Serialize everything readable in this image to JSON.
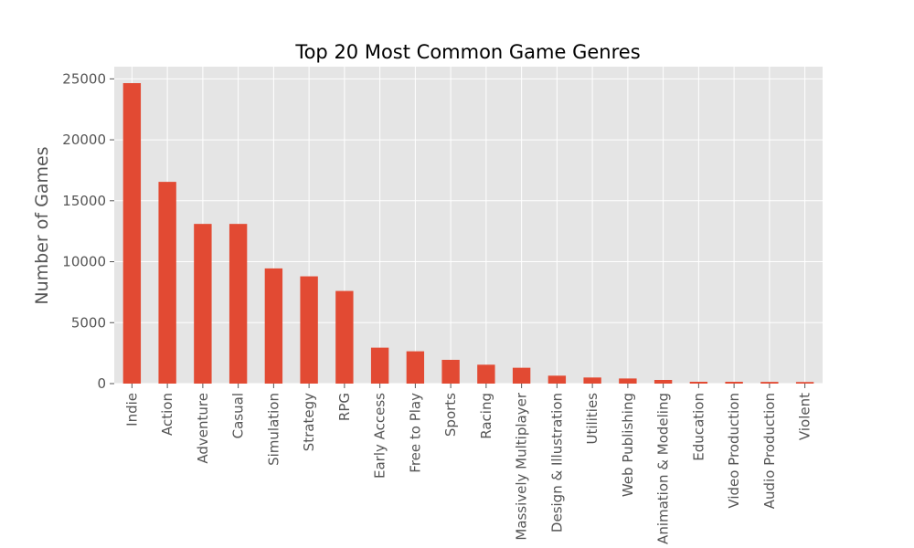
{
  "chart_data": {
    "type": "bar",
    "title": "Top 20 Most Common Game Genres",
    "xlabel": "",
    "ylabel": "Number of Games",
    "categories": [
      "Indie",
      "Action",
      "Adventure",
      "Casual",
      "Simulation",
      "Strategy",
      "RPG",
      "Early Access",
      "Free to Play",
      "Sports",
      "Racing",
      "Massively Multiplayer",
      "Design & Illustration",
      "Utilities",
      "Web Publishing",
      "Animation & Modeling",
      "Education",
      "Video Production",
      "Audio Production",
      "Violent"
    ],
    "values": [
      24650,
      16550,
      13100,
      13100,
      9450,
      8800,
      7600,
      2950,
      2650,
      1950,
      1550,
      1300,
      650,
      500,
      420,
      300,
      150,
      150,
      140,
      130
    ],
    "ylim": [
      0,
      26000
    ],
    "yticks": [
      0,
      5000,
      10000,
      15000,
      20000,
      25000
    ],
    "grid": true,
    "colors": {
      "bar": "#E24A33",
      "plot_bg": "#E5E5E5",
      "grid": "#FFFFFF"
    }
  }
}
